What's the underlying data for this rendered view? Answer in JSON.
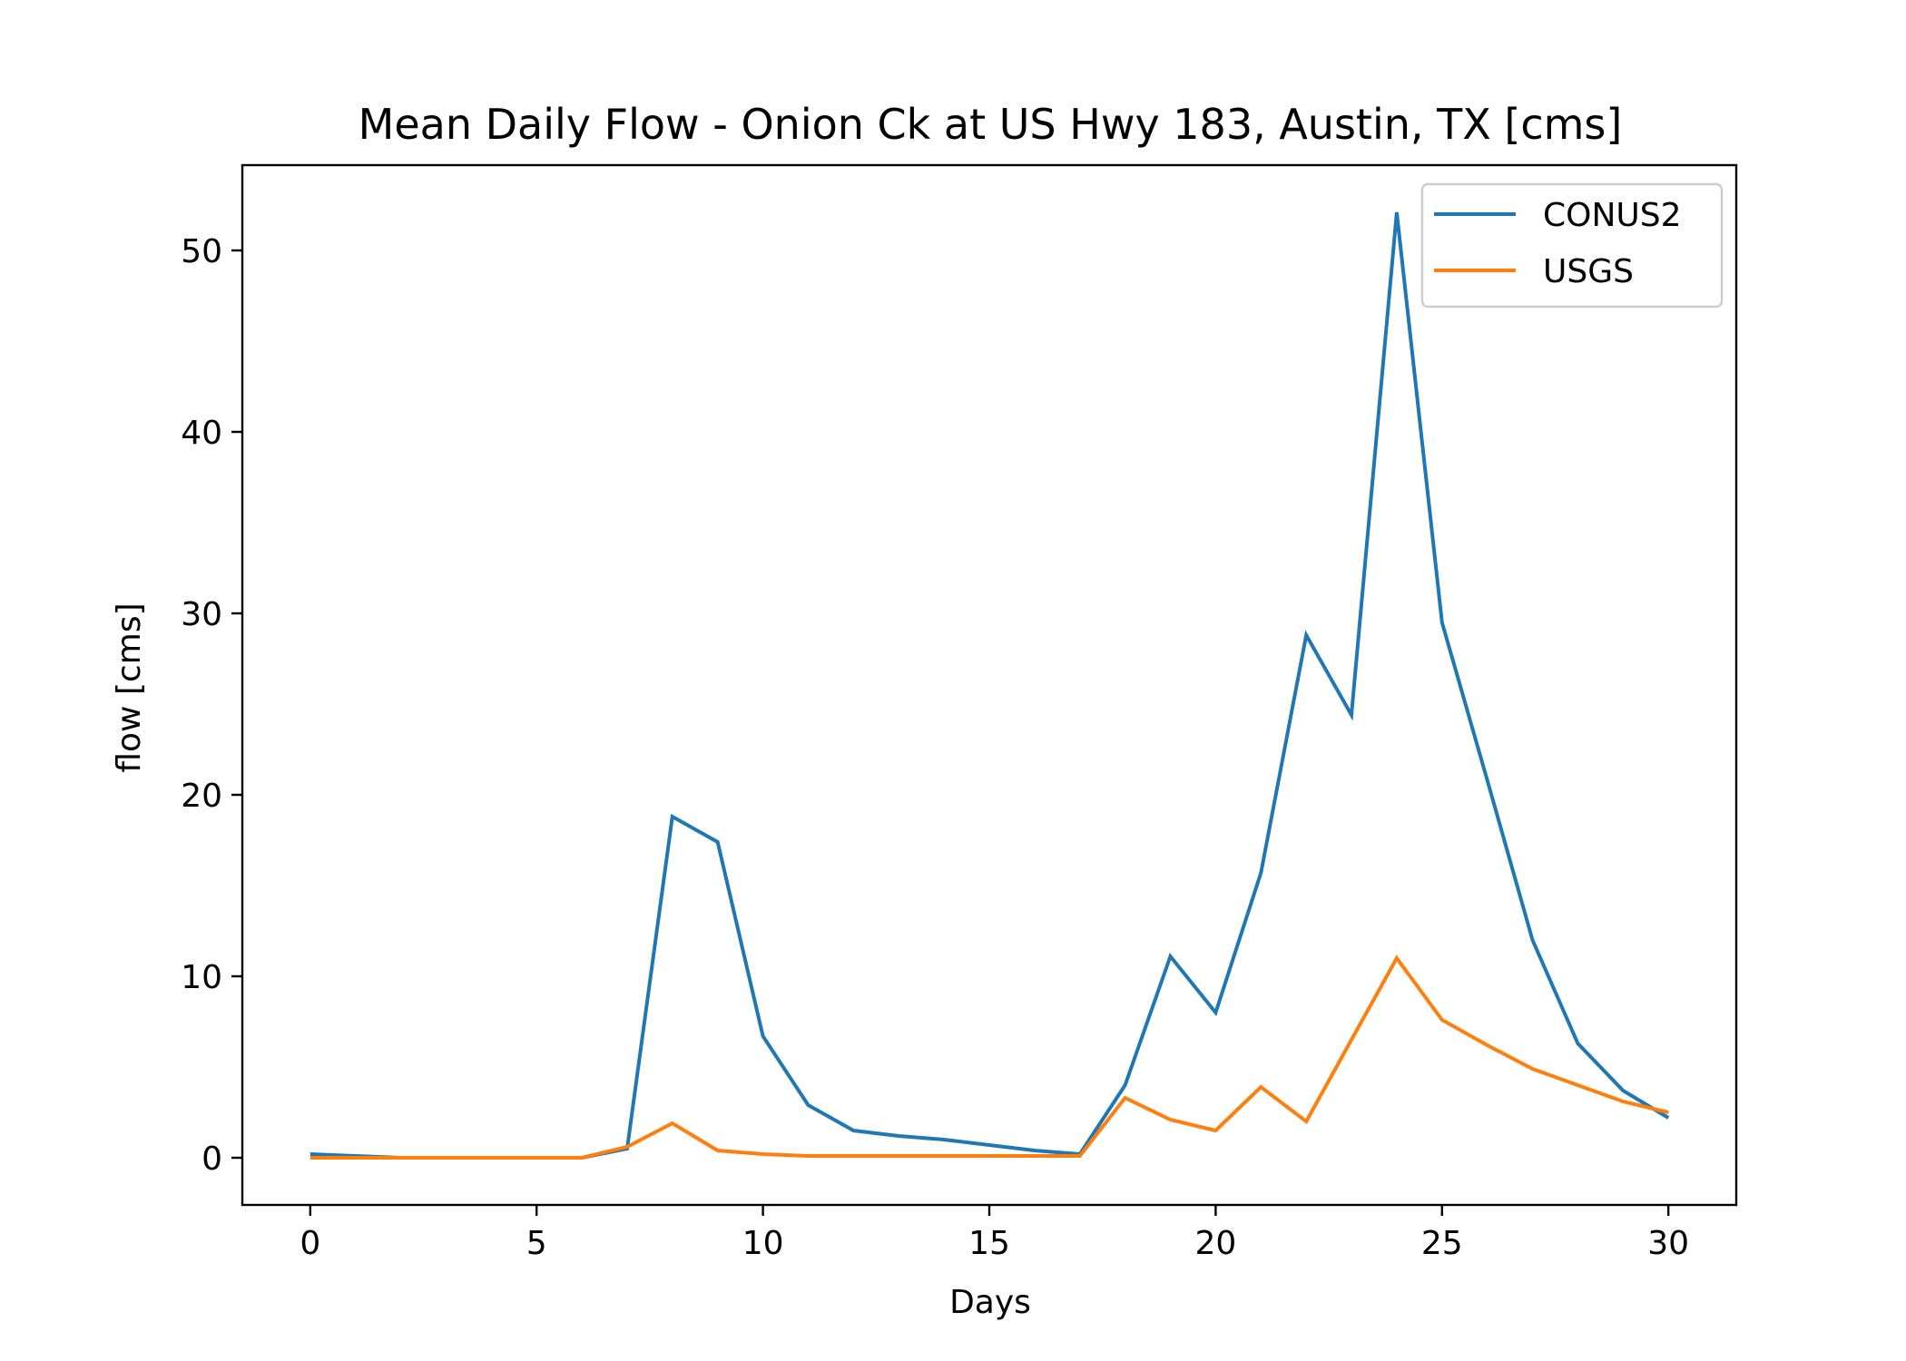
{
  "chart_data": {
    "type": "line",
    "title": "Mean Daily Flow - Onion Ck at US Hwy 183, Austin, TX [cms]",
    "xlabel": "Days",
    "ylabel": "flow [cms]",
    "xlim": [
      -1.5,
      31.5
    ],
    "ylim": [
      -2.6,
      54.7
    ],
    "xticks": [
      "0",
      "5",
      "10",
      "15",
      "20",
      "25",
      "30"
    ],
    "yticks": [
      "0",
      "10",
      "20",
      "30",
      "40",
      "50"
    ],
    "grid": false,
    "legend_position": "top-right",
    "x": [
      0,
      1,
      2,
      3,
      4,
      5,
      6,
      7,
      8,
      9,
      10,
      11,
      12,
      13,
      14,
      15,
      16,
      17,
      18,
      19,
      20,
      21,
      22,
      23,
      24,
      25,
      26,
      27,
      28,
      29,
      30
    ],
    "series": [
      {
        "name": "CONUS2",
        "color": "#1f77b4",
        "values": [
          0.2,
          0.1,
          0.0,
          0.0,
          0.0,
          0.0,
          0.0,
          0.5,
          18.8,
          17.4,
          6.7,
          2.9,
          1.5,
          1.2,
          1.0,
          0.7,
          0.4,
          0.2,
          4.0,
          11.1,
          8.0,
          15.7,
          28.8,
          24.4,
          52.1,
          29.5,
          20.8,
          12.0,
          6.3,
          3.7,
          2.2
        ]
      },
      {
        "name": "USGS",
        "color": "#ff7f0e",
        "values": [
          0.0,
          0.0,
          0.0,
          0.0,
          0.0,
          0.0,
          0.0,
          0.6,
          1.9,
          0.4,
          0.2,
          0.1,
          0.1,
          0.1,
          0.1,
          0.1,
          0.1,
          0.1,
          3.3,
          2.1,
          1.5,
          3.9,
          2.0,
          6.5,
          11.0,
          7.6,
          6.2,
          4.9,
          4.0,
          3.1,
          2.5
        ]
      }
    ]
  }
}
